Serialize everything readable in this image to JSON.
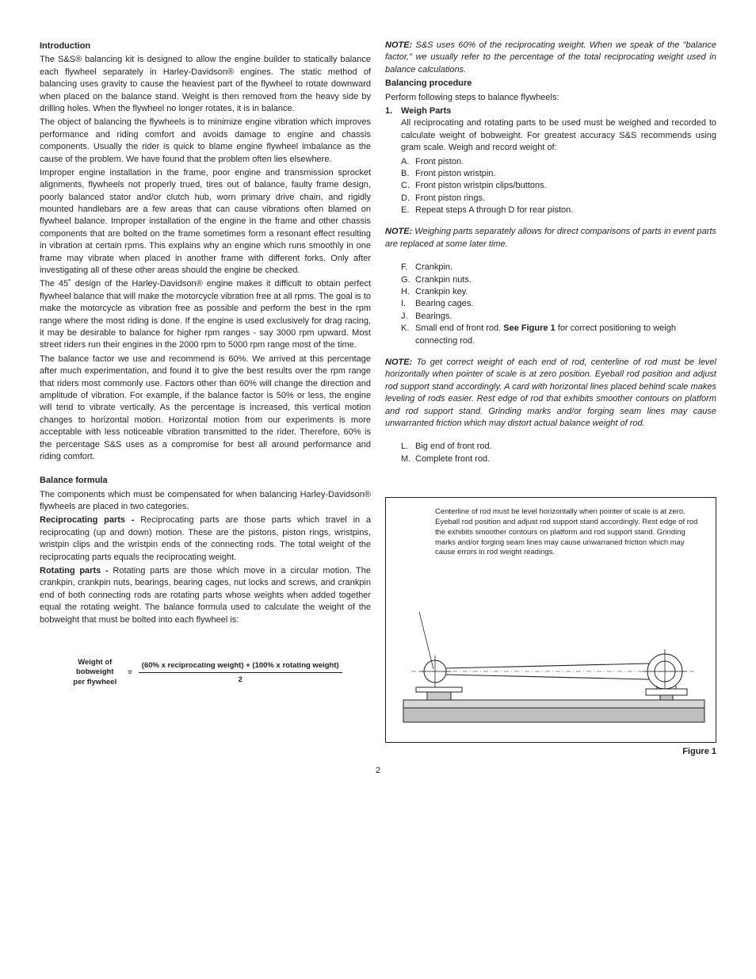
{
  "left": {
    "intro_heading": "Introduction",
    "p1": "The S&S® balancing kit is designed to allow the engine builder to statically balance each flywheel separately in Harley-Davidson® engines. The static method of balancing uses gravity to cause the heaviest part of the flywheel to rotate downward when placed on the balance stand. Weight is then removed from the heavy side by drilling holes. When the flywheel no longer rotates, it is in balance.",
    "p2": "The object of balancing the flywheels is to minimize engine vibration which improves performance and riding comfort and avoids damage to engine and chassis components. Usually the rider is quick to blame engine flywheel imbalance as the cause of the problem. We have found that the problem often lies elsewhere.",
    "p3": "Improper engine installation in the frame, poor engine and transmission sprocket alignments, flywheels not properly trued, tires out of balance, faulty frame design, poorly balanced stator and/or clutch hub, worn primary drive chain, and rigidly mounted handlebars are a few areas that can cause vibrations often blamed on flywheel balance. Improper installation of the engine in the frame and other chassis components that are bolted on the frame sometimes form a resonant effect resulting in vibration at certain rpms. This explains why an engine which runs smoothly in one frame may vibrate when placed in another frame with different forks. Only after investigating all of these other areas should the engine be checked.",
    "p4": "The 45˚ design of the Harley-Davidson® engine makes it difficult to obtain perfect flywheel balance that will make the motorcycle vibration free at all rpms. The goal is to make the motorcycle as vibration free as possible and perform the best in the rpm range where the most riding is done. If the engine is used exclusively for drag racing, it may be desirable to balance for higher rpm ranges - say 3000 rpm upward. Most street riders run their engines in the 2000 rpm to 5000 rpm range most of the time.",
    "p5": "The balance factor we use and recommend is 60%. We arrived at this percentage after much experimentation, and found it to give the best results over the rpm range that riders most commonly use. Factors other than 60% will change the direction and amplitude of vibration. For example, if the balance factor is 50% or less, the engine will tend to vibrate vertically. As the percentage is increased, this vertical motion changes to horizontal motion. Horizontal motion from our experiments is more acceptable with less noticeable vibration transmitted to the rider. Therefore, 60% is the percentage S&S uses as a compromise for best all around performance and riding comfort.",
    "bf_heading": "Balance formula",
    "bf_p1": "The components which must be compensated for when balancing Harley-Davidson® flywheels are placed in two categories.",
    "recip_label": "Reciprocating parts - ",
    "recip_body": "Reciprocating parts are those parts which travel in a reciprocating (up and down) motion. These are the pistons, piston rings, wristpins, wristpin clips and the wristpin ends of the connecting rods. The total weight of the reciprocating parts equals the reciprocating weight.",
    "rot_label": "Rotating parts - ",
    "rot_body": "Rotating parts are those which move in a circular motion. The crankpin, crankpin nuts, bearings, bearing cages, nut locks and screws, and crankpin end of both connecting rods are rotating parts whose weights when added together equal the rotating weight. The balance formula used to calculate the weight of the bobweight that must be bolted into each flywheel is:",
    "formula": {
      "lhs_l1": "Weight of",
      "lhs_l2": "bobweight",
      "lhs_l3": "per flywheel",
      "eq": "=",
      "rhs_top": "(60% x reciprocating weight) + (100% x rotating weight)",
      "rhs_bot": "2"
    }
  },
  "right": {
    "note1": "S&S uses 60% of the reciprocating weight. When we speak of the \"balance factor,\" we usually refer to the percentage of the total reciprocating weight used in balance calculations.",
    "bp_heading": "Balancing procedure",
    "bp_intro": "Perform following steps to balance flywheels:",
    "step1_num": "1.",
    "step1_title": "Weigh Parts",
    "step1_body": "All reciprocating and rotating parts to be used must be weighed and recorded to calculate weight of bobweight. For greatest accuracy S&S recommends using gram scale. Weigh and record weight of:",
    "items1": [
      {
        "m": "A.",
        "t": "Front piston."
      },
      {
        "m": "B.",
        "t": "Front piston wristpin."
      },
      {
        "m": "C.",
        "t": "Front piston wristpin clips/buttons."
      },
      {
        "m": "D.",
        "t": "Front piston rings."
      },
      {
        "m": "E.",
        "t": "Repeat steps A through D for rear piston."
      }
    ],
    "note2": "Weighing parts separately allows for direct comparisons of parts in event parts are replaced at some later time.",
    "items2": [
      {
        "m": "F.",
        "t": "Crankpin."
      },
      {
        "m": "G.",
        "t": "Crankpin nuts."
      },
      {
        "m": "H.",
        "t": "Crankpin key."
      },
      {
        "m": "I.",
        "t": "Bearing cages."
      },
      {
        "m": "J.",
        "t": "Bearings."
      }
    ],
    "itemK_m": "K.",
    "itemK_pre": "Small end of front rod. ",
    "itemK_bold": "See Figure 1",
    "itemK_post": " for correct positioning to weigh connecting rod.",
    "note3": "To get correct weight of each end of rod, centerline of rod must be level horizontally when pointer of scale is at zero position. Eyeball rod position and adjust rod support stand accordingly. A card with horizontal lines placed behind scale makes leveling of rods easier. Rest edge of rod that exhibits smoother contours on platform and rod support stand. Grinding marks and/or forging seam lines may cause unwarranted friction which may distort actual balance weight of rod.",
    "items3": [
      {
        "m": "L.",
        "t": "Big end of front rod."
      },
      {
        "m": "M.",
        "t": "Complete front rod."
      }
    ],
    "figure_text": "Centerline of rod must be level horizontally when pointer of scale is at zero. Eyeball rod position and adjust rod support stand accordingly. Rest edge of rod the exhibits smoother contours on platform and rod support stand. Grinding marks and/or forging seam lines may cause unwarraned friction which may cause errors in rod weight readings.",
    "figure_caption": "Figure 1"
  },
  "page_number": "2",
  "note_label": "NOTE:"
}
